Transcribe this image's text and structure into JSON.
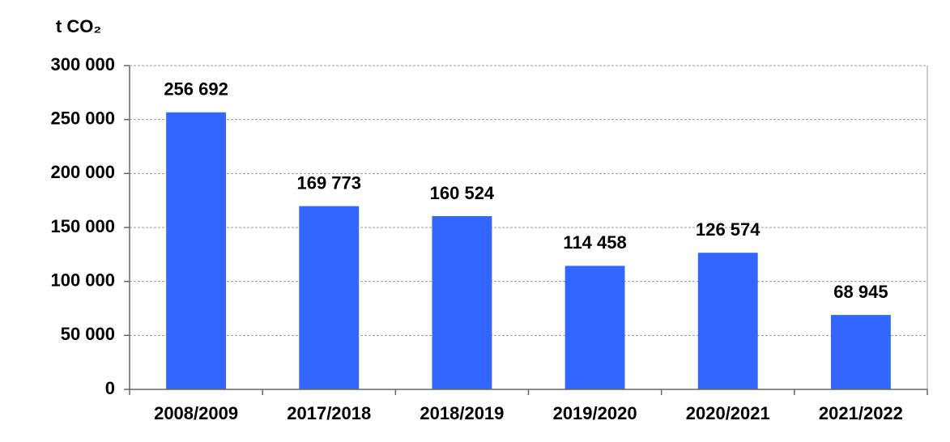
{
  "chart_data": {
    "type": "bar",
    "y_axis_label": "t CO₂",
    "categories": [
      "2008/2009",
      "2017/2018",
      "2018/2019",
      "2019/2020",
      "2020/2021",
      "2021/2022"
    ],
    "values": [
      256692,
      169773,
      160524,
      114458,
      126574,
      68945
    ],
    "value_labels": [
      "256 692",
      "169 773",
      "160 524",
      "114 458",
      "126 574",
      "68 945"
    ],
    "color": "#3366ff",
    "ylim": [
      0,
      300000
    ],
    "yticks": [
      0,
      {
        "value": 50000,
        "label": "50 000"
      },
      {
        "value": 100000,
        "label": "100 000"
      },
      {
        "value": 150000,
        "label": "150 000"
      },
      {
        "value": 200000,
        "label": "200 000"
      },
      {
        "value": 250000,
        "label": "250 000"
      },
      {
        "value": 300000,
        "label": "300 000"
      }
    ],
    "grid": true
  }
}
